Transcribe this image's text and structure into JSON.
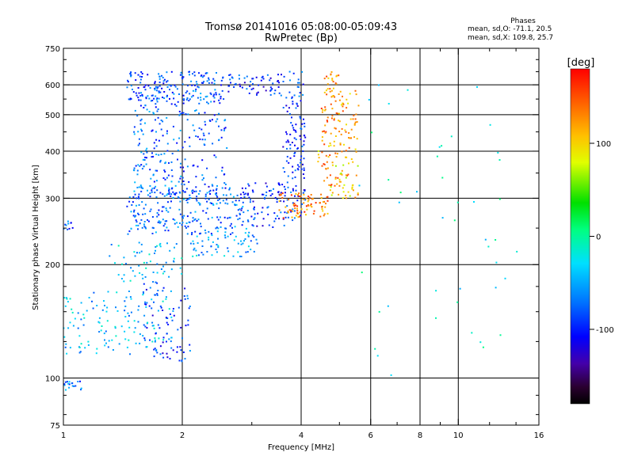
{
  "chart_data": {
    "type": "scatter",
    "title": "Tromsø 20141016 05:08:00-05:09:43",
    "subtitle": "RwPretec (Bp)",
    "phase_title": "Phases",
    "phase_stats": [
      "mean, sd,O: -71.1, 20.5",
      "mean, sd,X: 109.8, 25.7"
    ],
    "xlabel": "Frequency [MHz]",
    "ylabel": "Stationary phase Virtual Height [km]",
    "x_scale": "log",
    "y_scale": "log",
    "xlim": [
      1,
      16
    ],
    "ylim": [
      75,
      750
    ],
    "x_ticks": [
      1,
      2,
      4,
      6,
      8,
      10,
      16
    ],
    "x_tick_labels": [
      "1",
      "2",
      "4",
      "6",
      "8",
      "10",
      "16"
    ],
    "x_minor_ticks": [
      3,
      5,
      7,
      9,
      12,
      14
    ],
    "y_ticks": [
      75,
      100,
      200,
      300,
      400,
      500,
      600,
      750
    ],
    "y_tick_labels": [
      "75",
      "100",
      "200",
      "300",
      "400",
      "500",
      "600",
      "750"
    ],
    "y_minor_ticks": [
      80,
      90,
      125,
      150,
      175,
      250,
      350,
      450,
      550,
      650,
      700
    ],
    "grid": true,
    "colorbar": {
      "label": "[deg]",
      "range": [
        -180,
        180
      ],
      "ticks": [
        100,
        0,
        -100
      ],
      "tick_labels": [
        "100",
        "0",
        "-100"
      ]
    },
    "series": [
      {
        "clusters": [
          {
            "f": [
              1.45,
              2.55
            ],
            "h": [
              540,
              650
            ],
            "phase": -80,
            "count": 170
          },
          {
            "f": [
              1.5,
              2.0
            ],
            "h": [
              300,
              560
            ],
            "phase": -75,
            "count": 160
          },
          {
            "f": [
              2.0,
              2.6
            ],
            "h": [
              290,
              560
            ],
            "phase": -85,
            "count": 120
          },
          {
            "f": [
              1.45,
              3.0
            ],
            "h": [
              240,
              320
            ],
            "phase": -70,
            "count": 230
          },
          {
            "f": [
              2.6,
              3.6
            ],
            "h": [
              560,
              640
            ],
            "phase": -95,
            "count": 60
          },
          {
            "f": [
              3.6,
              4.1
            ],
            "h": [
              260,
              650
            ],
            "phase": -90,
            "count": 130
          },
          {
            "f": [
              2.8,
              3.7
            ],
            "h": [
              250,
              330
            ],
            "phase": -95,
            "count": 80
          },
          {
            "f": [
              2.1,
              3.1
            ],
            "h": [
              210,
              240
            ],
            "phase": -50,
            "count": 60
          },
          {
            "f": [
              1.0,
              1.9
            ],
            "h": [
              115,
              170
            ],
            "phase": -45,
            "count": 140
          },
          {
            "f": [
              1.6,
              2.1
            ],
            "h": [
              110,
              180
            ],
            "phase": -90,
            "count": 80
          },
          {
            "f": [
              1.3,
              2.0
            ],
            "h": [
              180,
              230
            ],
            "phase": -40,
            "count": 60
          },
          {
            "f": [
              1.0,
              1.12
            ],
            "h": [
              93,
              98
            ],
            "phase": -70,
            "count": 18
          },
          {
            "f": [
              1.0,
              1.06
            ],
            "h": [
              245,
              262
            ],
            "phase": -80,
            "count": 10
          }
        ]
      },
      {
        "clusters": [
          {
            "f": [
              4.5,
              5.0
            ],
            "h": [
              320,
              650
            ],
            "phase": 130,
            "count": 90
          },
          {
            "f": [
              5.0,
              5.6
            ],
            "h": [
              300,
              580
            ],
            "phase": 120,
            "count": 70
          },
          {
            "f": [
              3.5,
              4.7
            ],
            "h": [
              265,
              310
            ],
            "phase": 135,
            "count": 80
          },
          {
            "f": [
              4.4,
              5.6
            ],
            "h": [
              300,
              420
            ],
            "phase": 95,
            "count": 25
          },
          {
            "f": [
              5.6,
              15.0
            ],
            "h": [
              100,
              600
            ],
            "phase": -20,
            "count": 45
          }
        ]
      }
    ]
  }
}
